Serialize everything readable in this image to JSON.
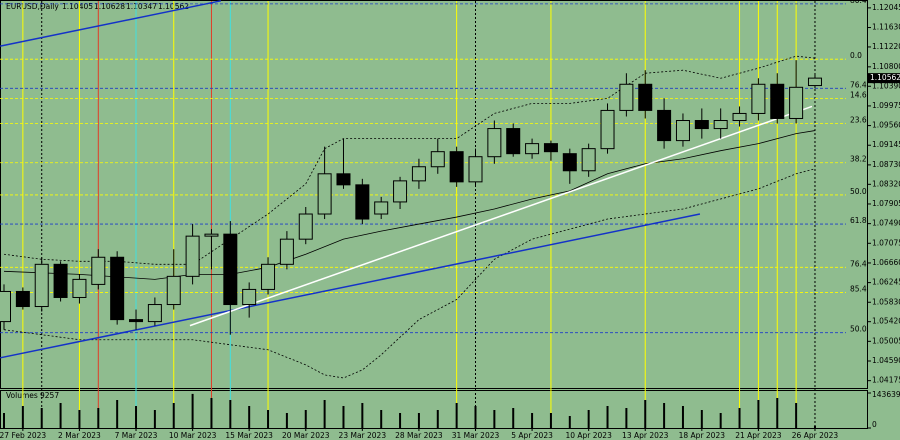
{
  "chart_data": {
    "type": "candlestick",
    "symbol": "EURUSD,Daily",
    "background": "#8fbc8f",
    "up_color": "#8fbc8f",
    "down_color": "#000000",
    "categories": [
      null,
      "27 Feb 2023",
      null,
      null,
      "2 Mar 2023",
      null,
      null,
      "7 Mar 2023",
      null,
      null,
      "10 Mar 2023",
      null,
      null,
      "15 Mar 2023",
      null,
      null,
      "20 Mar 2023",
      null,
      null,
      "23 Mar 2023",
      null,
      null,
      "28 Mar 2023",
      null,
      null,
      "31 Mar 2023",
      null,
      null,
      "5 Apr 2023",
      null,
      null,
      "10 Apr 2023",
      null,
      null,
      "13 Apr 2023",
      null,
      null,
      "18 Apr 2023",
      null,
      null,
      "21 Apr 2023",
      null,
      null,
      "26 Apr 2023"
    ],
    "open": [
      1.05422,
      1.06058,
      1.0574,
      1.06631,
      1.05931,
      1.06207,
      1.0678,
      1.05464,
      1.05422,
      1.05782,
      1.06377,
      1.07226,
      1.07268,
      1.05782,
      1.06101,
      1.06631,
      1.07162,
      1.07693,
      1.08542,
      1.08309,
      1.07693,
      1.07948,
      1.08393,
      1.08691,
      1.09009,
      1.08372,
      1.08903,
      1.09497,
      1.08967,
      1.09179,
      1.08967,
      1.08606,
      1.09073,
      1.0988,
      1.10432,
      1.0988,
      1.09243,
      1.09667,
      1.09497,
      1.09667,
      1.09816,
      1.10432,
      1.0971,
      1.10405
    ],
    "high": [
      1.06207,
      1.06143,
      1.0678,
      1.06695,
      1.06419,
      1.0695,
      1.06907,
      1.05676,
      1.05931,
      1.0695,
      1.07481,
      1.07374,
      1.07544,
      1.06249,
      1.0678,
      1.07332,
      1.07841,
      1.09115,
      1.09285,
      1.08436,
      1.08054,
      1.08478,
      1.0886,
      1.09285,
      1.09115,
      1.09073,
      1.09667,
      1.09604,
      1.09285,
      1.09243,
      1.09073,
      1.09179,
      1.10028,
      1.10665,
      1.10729,
      1.10134,
      1.09816,
      1.09922,
      1.09922,
      1.09964,
      1.10559,
      1.10665,
      1.10941,
      1.10628
    ],
    "low": [
      1.05251,
      1.05676,
      1.05634,
      1.05846,
      1.05803,
      1.06101,
      1.05358,
      1.05251,
      1.05337,
      1.05676,
      1.06207,
      1.06525,
      1.05145,
      1.05506,
      1.05994,
      1.06525,
      1.07056,
      1.07587,
      1.08224,
      1.07481,
      1.07587,
      1.07799,
      1.08224,
      1.08542,
      1.08266,
      1.08266,
      1.08754,
      1.08903,
      1.0886,
      1.08818,
      1.0833,
      1.08478,
      1.08967,
      1.09752,
      1.0971,
      1.09073,
      1.09115,
      1.09285,
      1.09285,
      1.0954,
      1.09667,
      1.09604,
      1.09604,
      1.10347
    ],
    "close": [
      1.06058,
      1.0574,
      1.06631,
      1.05931,
      1.06313,
      1.0678,
      1.05464,
      1.05422,
      1.05782,
      1.06377,
      1.07226,
      1.07268,
      1.05782,
      1.06101,
      1.06631,
      1.07162,
      1.07693,
      1.08542,
      1.08309,
      1.07587,
      1.07948,
      1.08393,
      1.08691,
      1.09009,
      1.08372,
      1.08903,
      1.09497,
      1.08967,
      1.09179,
      1.09009,
      1.08606,
      1.09073,
      1.0988,
      1.10432,
      1.0988,
      1.09243,
      1.09667,
      1.09497,
      1.09667,
      1.09816,
      1.10432,
      1.0971,
      1.10368,
      1.10562
    ],
    "ylim": [
      1.0402,
      1.1219
    ],
    "yticks": [
      1.12045,
      {
        "value": 1.1163,
        "label": "1.11630"
      },
      {
        "value": 1.1122,
        "label": "1.11220"
      },
      {
        "value": 1.108,
        "label": "1.10800"
      },
      {
        "value": 1.1039,
        "label": "1.10390"
      },
      1.09975,
      {
        "value": 1.0956,
        "label": "1.09560"
      },
      1.09145,
      {
        "value": 1.0873,
        "label": "1.08730"
      },
      {
        "value": 1.0832,
        "label": "1.08320"
      },
      1.07905,
      {
        "value": 1.0749,
        "label": "1.07490"
      },
      1.07075,
      {
        "value": 1.0666,
        "label": "1.06660"
      },
      1.06245,
      {
        "value": 1.0583,
        "label": "1.05830"
      },
      {
        "value": 1.0542,
        "label": "1.05420"
      },
      1.05005,
      {
        "value": 1.0459,
        "label": "1.04590"
      },
      1.04175
    ],
    "fib_levels": [
      {
        "label": "80.4",
        "value": 1.1213,
        "color": "#1e3cc8"
      },
      {
        "label": "0.0",
        "value": 1.10962,
        "color": "#ffff00"
      },
      {
        "label": "76.4",
        "value": 1.10347,
        "color": "#1e3cc8"
      },
      {
        "label": "14.6",
        "value": 1.10134,
        "color": "#ffff00"
      },
      {
        "label": "23.6",
        "value": 1.09604,
        "color": "#ffff00"
      },
      {
        "label": "38.2",
        "value": 1.08776,
        "color": "#ffff00"
      },
      {
        "label": "50.0",
        "value": 1.08096,
        "color": "#ffff00"
      },
      {
        "label": "61.8",
        "value": 1.07481,
        "color": "#1e3cc8"
      },
      {
        "label": "76.4",
        "value": 1.06568,
        "color": "#ffff00"
      },
      {
        "label": "85.4",
        "value": 1.06037,
        "color": "#ffff00"
      },
      {
        "label": "50.0",
        "value": 1.05188,
        "color": "#1e3cc8"
      }
    ],
    "trendlines": [
      {
        "color": "#1432c8",
        "x": [
          -0.2,
          11.5
        ],
        "values": [
          1.11238,
          1.12194
        ]
      },
      {
        "color": "#1432c8",
        "x": [
          -0.2,
          36.9
        ],
        "values": [
          1.04657,
          1.07693
        ]
      },
      {
        "color": "#ffffff",
        "x": [
          9.86,
          42.84
        ],
        "values": [
          1.05337,
          1.09964
        ]
      }
    ],
    "indicator_lines": [
      {
        "color": "#000000",
        "dashed": true,
        "x": [
          0,
          2,
          4,
          6,
          8,
          10,
          12,
          14,
          16,
          17,
          18,
          20,
          22,
          24,
          26,
          28,
          30,
          32,
          34,
          36,
          38,
          40,
          42,
          43
        ],
        "values": [
          1.06844,
          1.06737,
          1.06695,
          1.06695,
          1.06631,
          1.06631,
          1.07162,
          1.07693,
          1.0833,
          1.09073,
          1.09285,
          1.09285,
          1.09285,
          1.09285,
          1.09816,
          1.10028,
          1.10028,
          1.10134,
          1.10665,
          1.10729,
          1.10559,
          1.10771,
          1.11026,
          1.10983
        ]
      },
      {
        "color": "#000000",
        "dashed": true,
        "x": [
          0,
          2,
          4,
          6,
          8,
          10,
          12,
          14,
          16,
          17,
          18,
          19,
          20,
          22,
          24,
          26,
          28,
          30,
          32,
          34,
          36,
          38,
          40,
          42,
          43
        ],
        "values": [
          1.05251,
          1.05145,
          1.05039,
          1.05039,
          1.05039,
          1.05039,
          1.04933,
          1.04827,
          1.04508,
          1.04296,
          1.04232,
          1.04402,
          1.04721,
          1.05464,
          1.05888,
          1.06737,
          1.07162,
          1.07374,
          1.07587,
          1.07693,
          1.07799,
          1.08011,
          1.08224,
          1.08542,
          1.08648
        ]
      },
      {
        "color": "#000000",
        "dashed": false,
        "x": [
          0,
          4,
          8,
          10,
          12,
          14,
          16,
          18,
          20,
          22,
          24,
          26,
          28,
          30,
          32,
          34,
          36,
          38,
          40,
          42,
          43
        ],
        "values": [
          1.06483,
          1.06419,
          1.06313,
          1.06419,
          1.06419,
          1.06568,
          1.06844,
          1.07162,
          1.07332,
          1.07481,
          1.07629,
          1.07799,
          1.08011,
          1.08181,
          1.08542,
          1.08754,
          1.0886,
          1.0903,
          1.09179,
          1.09391,
          1.09455
        ]
      }
    ],
    "vlines": [
      {
        "at": 1,
        "color": "#ffff00"
      },
      {
        "at": 4,
        "color": "#ffff00"
      },
      {
        "at": 9,
        "color": "#ffff00"
      },
      {
        "at": 14,
        "color": "#ffff00"
      },
      {
        "at": 24,
        "color": "#ffff00"
      },
      {
        "at": 29,
        "color": "#ffff00"
      },
      {
        "at": 34,
        "color": "#ffff00"
      },
      {
        "at": 39,
        "color": "#ffff00"
      },
      {
        "at": 40,
        "color": "#ffff00"
      },
      {
        "at": 41,
        "color": "#ffff00"
      },
      {
        "at": 42,
        "color": "#ffff00"
      },
      {
        "at": 5,
        "color": "#e03c28"
      },
      {
        "at": 11,
        "color": "#e03c28"
      },
      {
        "at": 7,
        "color": "#40e0e0"
      },
      {
        "at": 12,
        "color": "#40e0e0"
      },
      {
        "at": 2,
        "color": "#000000",
        "dashed": true
      },
      {
        "at": 25,
        "color": "#000000",
        "dashed": true
      },
      {
        "at": 43,
        "color": "#000000",
        "dashed": true
      }
    ],
    "volume": {
      "label": "Volumes",
      "color": "#000000",
      "values": [
        61560,
        90290,
        82080,
        102600,
        73870,
        82080,
        114910,
        90290,
        73870,
        102600,
        140000,
        123120,
        114910,
        90290,
        73870,
        61560,
        73870,
        114910,
        90290,
        102600,
        73870,
        61560,
        61560,
        73870,
        102600,
        90290,
        73870,
        82080,
        61560,
        61560,
        49250,
        73870,
        90290,
        82080,
        114910,
        102600,
        90290,
        73870,
        61560,
        82080,
        114910,
        123120,
        102600,
        9257
      ],
      "ylim": [
        0,
        143639
      ],
      "yticks": [
        0,
        143639
      ]
    }
  }
}
